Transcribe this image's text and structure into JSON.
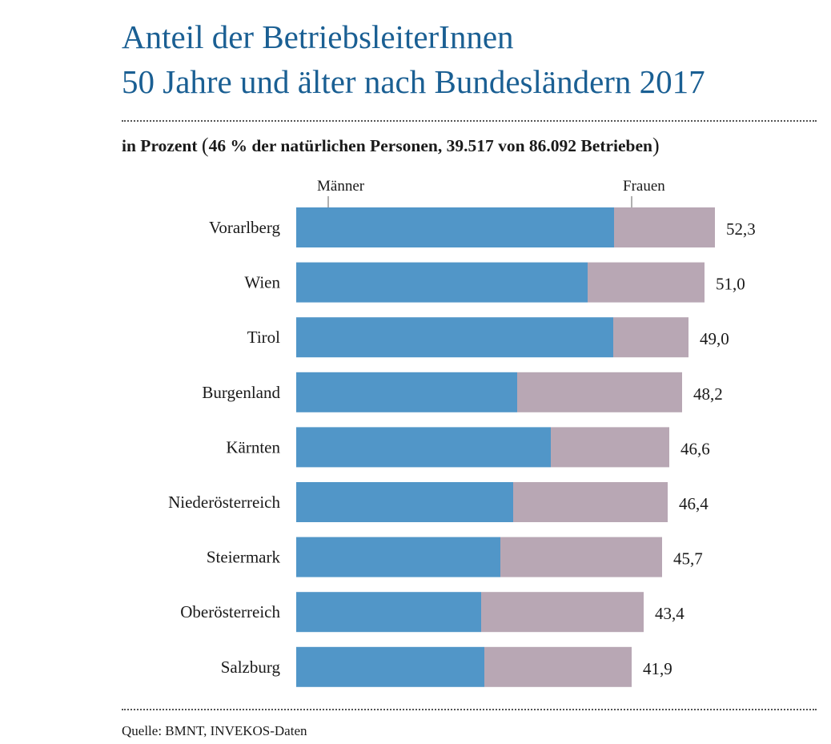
{
  "title": {
    "line1": "Anteil der BetriebsleiterInnen",
    "line2": "50 Jahre und älter nach Bundesländern 2017"
  },
  "subtitle": {
    "prefix": "in Prozent ",
    "open_paren": "(",
    "text": "46 % der natürlichen Personen, 39.517 von 86.092 Betrieben",
    "close_paren": ")"
  },
  "source": "Quelle: BMNT, INVEKOS-Daten",
  "colors": {
    "title": "#1a5f93",
    "maenner": "#5196c8",
    "frauen": "#b8a7b4"
  },
  "chart_data": {
    "type": "bar",
    "orientation": "horizontal",
    "stacked": true,
    "title": "Anteil der BetriebsleiterInnen 50 Jahre und älter nach Bundesländern 2017",
    "subtitle": "in Prozent (46 % der natürlichen Personen, 39.517 von 86.092 Betrieben)",
    "categories": [
      "Vorarlberg",
      "Wien",
      "Tirol",
      "Burgenland",
      "Kärnten",
      "Niederösterreich",
      "Steiermark",
      "Oberösterreich",
      "Salzburg"
    ],
    "totals": [
      52.3,
      51.0,
      49.0,
      48.2,
      46.6,
      46.4,
      45.7,
      43.4,
      41.9
    ],
    "total_labels": [
      "52,3",
      "51,0",
      "49,0",
      "48,2",
      "46,6",
      "46,4",
      "45,7",
      "43,4",
      "41,9"
    ],
    "series": [
      {
        "name": "Männer",
        "color": "#5196c8",
        "values": [
          39.7,
          36.4,
          39.6,
          27.6,
          31.8,
          27.1,
          25.5,
          23.1,
          23.5
        ]
      },
      {
        "name": "Frauen",
        "color": "#b8a7b4",
        "values": [
          12.6,
          14.6,
          9.4,
          20.6,
          14.8,
          19.3,
          20.2,
          20.3,
          18.4
        ]
      }
    ],
    "xlim": [
      0,
      52.3
    ],
    "grid": false,
    "axes_visible": false,
    "legend": "top, labels with tick marks above first bar"
  }
}
